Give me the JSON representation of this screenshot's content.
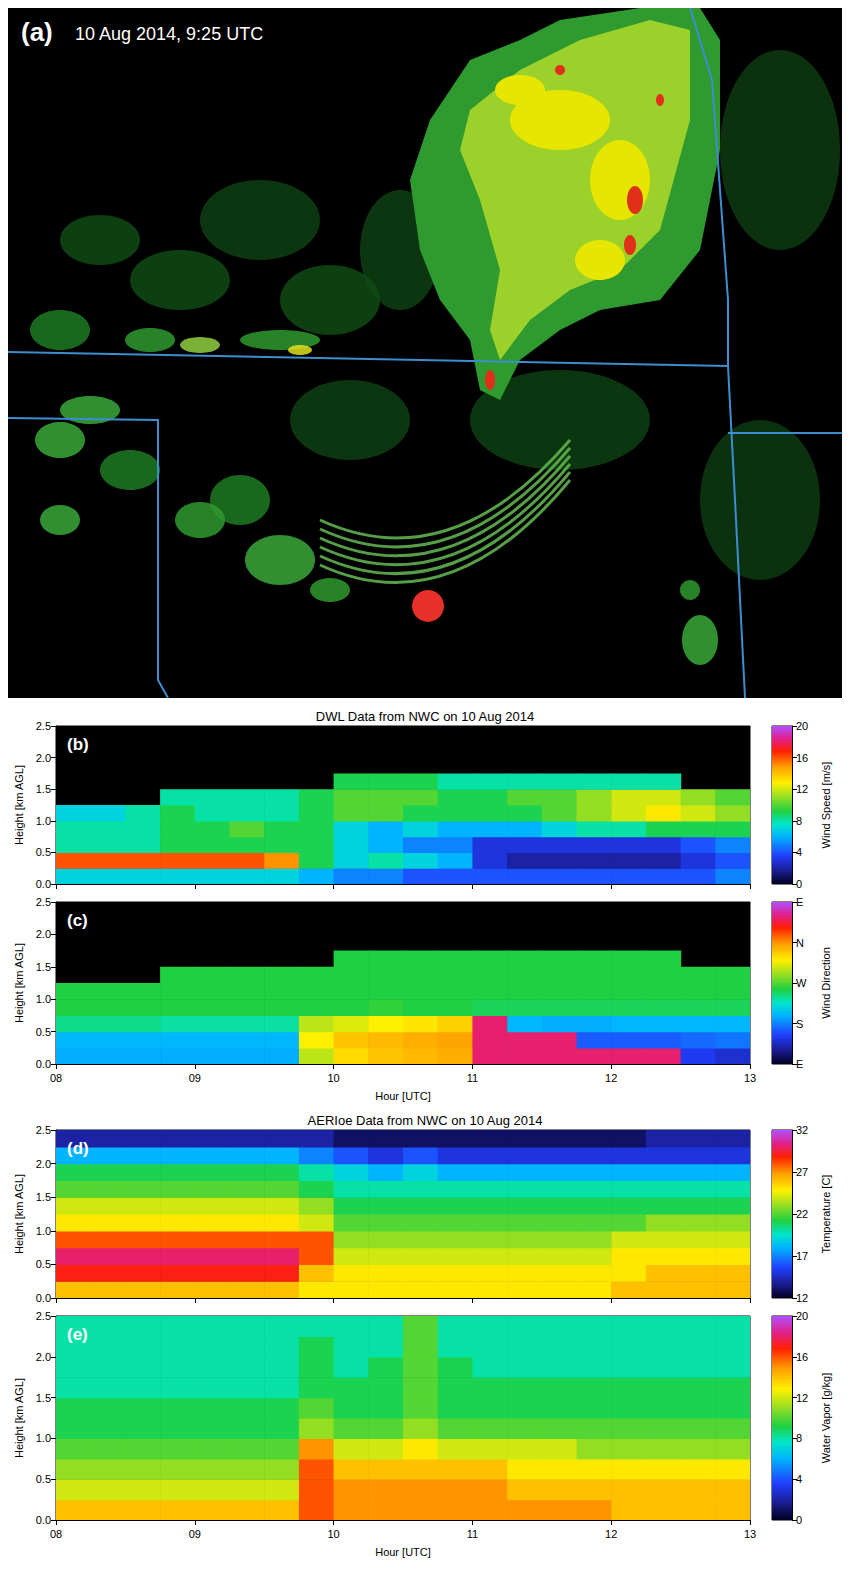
{
  "image_panel": {
    "panel": "(a)",
    "caption": "10 Aug 2014, 9:25 UTC"
  },
  "chart_data": [
    {
      "type": "heatmap",
      "panel": "(b)",
      "title": "DWL Data from NWC on 10 Aug 2014",
      "y_label": "Height [km AGL]",
      "tick_labels": "y",
      "x": [
        8.125,
        8.375,
        8.625,
        8.875,
        9.125,
        9.375,
        9.625,
        9.875,
        10.125,
        10.375,
        10.625,
        10.875,
        11.125,
        11.375,
        11.625,
        11.875,
        12.125,
        12.375,
        12.625,
        12.875
      ],
      "y": [
        0.125,
        0.375,
        0.625,
        0.875,
        1.125,
        1.375,
        1.625,
        1.875,
        2.125,
        2.375
      ],
      "cells": [
        [
          7,
          7,
          7,
          7,
          7,
          7,
          7,
          6,
          5,
          5,
          4,
          4,
          4,
          4,
          4,
          4,
          4,
          4,
          4,
          5
        ],
        [
          16,
          16,
          16,
          16,
          16,
          16,
          15,
          9,
          7,
          8,
          7,
          6,
          3,
          2,
          2,
          2,
          2,
          2,
          3,
          4
        ],
        [
          8,
          8,
          8,
          9,
          9,
          9,
          9,
          9,
          7,
          6,
          5,
          5,
          3,
          3,
          3,
          3,
          3,
          3,
          4,
          5
        ],
        [
          8,
          8,
          8,
          9,
          9,
          10,
          9,
          9,
          7,
          6,
          7,
          6,
          6,
          6,
          7,
          8,
          8,
          9,
          9,
          9
        ],
        [
          7,
          7,
          8,
          9,
          8,
          8,
          8,
          9,
          10,
          10,
          9,
          9,
          9,
          9,
          10,
          11,
          12,
          13,
          12,
          11
        ],
        [
          null,
          null,
          null,
          8,
          8,
          8,
          8,
          9,
          10,
          10,
          10,
          9,
          9,
          10,
          10,
          11,
          12,
          12,
          11,
          10
        ],
        [
          null,
          null,
          null,
          null,
          null,
          null,
          null,
          null,
          9,
          9,
          9,
          8,
          8,
          8,
          8,
          8,
          8,
          8,
          null,
          null
        ],
        [
          null,
          null,
          null,
          null,
          null,
          null,
          null,
          null,
          null,
          null,
          null,
          null,
          null,
          null,
          null,
          null,
          null,
          null,
          null,
          null
        ],
        [
          null,
          null,
          null,
          null,
          null,
          null,
          null,
          null,
          null,
          null,
          null,
          null,
          null,
          null,
          null,
          null,
          null,
          null,
          null,
          null
        ],
        [
          null,
          null,
          null,
          null,
          null,
          null,
          null,
          null,
          null,
          null,
          null,
          null,
          null,
          null,
          null,
          null,
          null,
          null,
          null,
          null
        ]
      ],
      "xlim": [
        8,
        13
      ],
      "xticks": [
        {
          "value": 8,
          "label": "08"
        },
        {
          "value": 9,
          "label": "09"
        },
        10,
        11,
        12,
        13
      ],
      "ylim": [
        0,
        2.5
      ],
      "yticks": [
        {
          "value": 0,
          "label": "0.0"
        },
        0.5,
        {
          "value": 1,
          "label": "1.0"
        },
        1.5,
        {
          "value": 2,
          "label": "2.0"
        },
        2.5
      ],
      "colorbar": {
        "label": "Wind Speed [m/s]",
        "range": [
          0,
          20
        ],
        "ticks": [
          0,
          4,
          8,
          12,
          16,
          20
        ]
      }
    },
    {
      "type": "heatmap",
      "panel": "(c)",
      "x_label": "Hour [UTC]",
      "y_label": "Height [km AGL]",
      "x": [
        8.125,
        8.375,
        8.625,
        8.875,
        9.125,
        9.375,
        9.625,
        9.875,
        10.125,
        10.375,
        10.625,
        10.875,
        11.125,
        11.375,
        11.625,
        11.875,
        12.125,
        12.375,
        12.625,
        12.875
      ],
      "y": [
        0.125,
        0.375,
        0.625,
        0.875,
        1.125,
        1.375,
        1.625,
        1.875,
        2.125,
        2.375
      ],
      "cells": [
        [
          195,
          195,
          195,
          195,
          195,
          195,
          195,
          300,
          330,
          340,
          345,
          350,
          415,
          415,
          415,
          415,
          415,
          415,
          150,
          140
        ],
        [
          200,
          200,
          200,
          200,
          200,
          200,
          200,
          320,
          340,
          345,
          350,
          355,
          415,
          415,
          415,
          165,
          165,
          165,
          170,
          175
        ],
        [
          240,
          240,
          240,
          235,
          235,
          235,
          235,
          300,
          310,
          320,
          325,
          335,
          415,
          200,
          195,
          195,
          200,
          200,
          200,
          200
        ],
        [
          255,
          255,
          255,
          255,
          255,
          255,
          255,
          255,
          255,
          260,
          255,
          255,
          250,
          250,
          250,
          250,
          250,
          250,
          250,
          250
        ],
        [
          255,
          255,
          255,
          255,
          255,
          255,
          255,
          255,
          255,
          255,
          255,
          255,
          255,
          255,
          255,
          255,
          255,
          255,
          255,
          255
        ],
        [
          null,
          null,
          null,
          255,
          255,
          255,
          255,
          255,
          255,
          255,
          255,
          255,
          255,
          255,
          255,
          255,
          255,
          255,
          255,
          255
        ],
        [
          null,
          null,
          null,
          null,
          null,
          null,
          null,
          null,
          255,
          255,
          255,
          255,
          255,
          255,
          255,
          255,
          255,
          255,
          null,
          null
        ],
        [
          null,
          null,
          null,
          null,
          null,
          null,
          null,
          null,
          null,
          null,
          null,
          null,
          null,
          null,
          null,
          null,
          null,
          null,
          null,
          null
        ],
        [
          null,
          null,
          null,
          null,
          null,
          null,
          null,
          null,
          null,
          null,
          null,
          null,
          null,
          null,
          null,
          null,
          null,
          null,
          null,
          null
        ],
        [
          null,
          null,
          null,
          null,
          null,
          null,
          null,
          null,
          null,
          null,
          null,
          null,
          null,
          null,
          null,
          null,
          null,
          null,
          null,
          null
        ]
      ],
      "xlim": [
        8,
        13
      ],
      "xticks": [
        {
          "value": 8,
          "label": "08"
        },
        {
          "value": 9,
          "label": "09"
        },
        10,
        11,
        12,
        13
      ],
      "ylim": [
        0,
        2.5
      ],
      "yticks": [
        {
          "value": 0,
          "label": "0.0"
        },
        0.5,
        {
          "value": 1,
          "label": "1.0"
        },
        1.5,
        {
          "value": 2,
          "label": "2.0"
        },
        2.5
      ],
      "colorbar": {
        "label": "Wind Direction",
        "range": [
          90,
          450
        ],
        "ticks": [
          {
            "value": 90,
            "label": "E"
          },
          {
            "value": 180,
            "label": "S"
          },
          {
            "value": 270,
            "label": "W"
          },
          {
            "value": 360,
            "label": "N"
          },
          {
            "value": 450,
            "label": "E"
          }
        ]
      }
    },
    {
      "type": "heatmap",
      "panel": "(d)",
      "title": "AERIoe Data from NWC on 10 Aug 2014",
      "y_label": "Height [km AGL]",
      "tick_labels": "y",
      "x": [
        8.125,
        8.375,
        8.625,
        8.875,
        9.125,
        9.375,
        9.625,
        9.875,
        10.125,
        10.375,
        10.625,
        10.875,
        11.125,
        11.375,
        11.625,
        11.875,
        12.125,
        12.375,
        12.625,
        12.875
      ],
      "y": [
        0.125,
        0.375,
        0.625,
        0.875,
        1.125,
        1.375,
        1.625,
        1.875,
        2.125,
        2.375
      ],
      "cells": [
        [
          26,
          26,
          26,
          26,
          26,
          26,
          26,
          25,
          25,
          25,
          25,
          25,
          25,
          25,
          25,
          25,
          26,
          26,
          26,
          26
        ],
        [
          29,
          29,
          29,
          29,
          29,
          29,
          29,
          26,
          25,
          25,
          25,
          25,
          25,
          25,
          25,
          25,
          25,
          26,
          26,
          26
        ],
        [
          30,
          30,
          30,
          30,
          30,
          30,
          30,
          28,
          24,
          24,
          24,
          24,
          24,
          24,
          24,
          24,
          25,
          25,
          25,
          25
        ],
        [
          28,
          28,
          28,
          28,
          28,
          28,
          28,
          28,
          23,
          23,
          23,
          23,
          23,
          23,
          23,
          23,
          24,
          24,
          24,
          24
        ],
        [
          25,
          25,
          25,
          25,
          25,
          25,
          25,
          24,
          22,
          22,
          22,
          22,
          22,
          22,
          22,
          22,
          22,
          23,
          23,
          23
        ],
        [
          24,
          24,
          24,
          24,
          24,
          24,
          24,
          23,
          21,
          21,
          21,
          21,
          21,
          21,
          21,
          21,
          21,
          21,
          21,
          21
        ],
        [
          22,
          22,
          22,
          22,
          22,
          22,
          22,
          21,
          20,
          20,
          20,
          20,
          20,
          20,
          20,
          20,
          20,
          20,
          20,
          20
        ],
        [
          21,
          21,
          21,
          21,
          21,
          21,
          21,
          20,
          19,
          18,
          19,
          18,
          18,
          18,
          18,
          18,
          18,
          18,
          18,
          18
        ],
        [
          18,
          18,
          18,
          18,
          18,
          18,
          18,
          17,
          16,
          15,
          16,
          15,
          15,
          15,
          15,
          15,
          15,
          15,
          15,
          15
        ],
        [
          14,
          14,
          14,
          14,
          14,
          14,
          14,
          14,
          13,
          13,
          13,
          13,
          13,
          13,
          13,
          13,
          13,
          14,
          14,
          14
        ]
      ],
      "xlim": [
        8,
        13
      ],
      "xticks": [
        {
          "value": 8,
          "label": "08"
        },
        {
          "value": 9,
          "label": "09"
        },
        10,
        11,
        12,
        13
      ],
      "ylim": [
        0,
        2.5
      ],
      "yticks": [
        {
          "value": 0,
          "label": "0.0"
        },
        0.5,
        {
          "value": 1,
          "label": "1.0"
        },
        1.5,
        {
          "value": 2,
          "label": "2.0"
        },
        2.5
      ],
      "colorbar": {
        "label": "Temperature [C]",
        "range": [
          12,
          32
        ],
        "ticks": [
          12,
          17,
          22,
          27,
          32
        ]
      }
    },
    {
      "type": "heatmap",
      "panel": "(e)",
      "x_label": "Hour [UTC]",
      "y_label": "Height [km AGL]",
      "x": [
        8.125,
        8.375,
        8.625,
        8.875,
        9.125,
        9.375,
        9.625,
        9.875,
        10.125,
        10.375,
        10.625,
        10.875,
        11.125,
        11.375,
        11.625,
        11.875,
        12.125,
        12.375,
        12.625,
        12.875
      ],
      "y": [
        0.125,
        0.375,
        0.625,
        0.875,
        1.125,
        1.375,
        1.625,
        1.875,
        2.125,
        2.375
      ],
      "cells": [
        [
          14,
          14,
          14,
          14,
          14,
          14,
          14,
          16,
          15,
          15,
          15,
          15,
          15,
          15,
          15,
          15,
          14,
          14,
          14,
          14
        ],
        [
          12,
          12,
          12,
          12,
          12,
          12,
          12,
          16,
          15,
          15,
          15,
          15,
          15,
          14,
          14,
          14,
          14,
          14,
          14,
          14
        ],
        [
          11,
          11,
          11,
          11,
          11,
          11,
          11,
          16,
          14,
          14,
          14,
          14,
          14,
          13,
          13,
          13,
          13,
          13,
          13,
          13
        ],
        [
          10,
          10,
          10,
          10,
          10,
          10,
          10,
          15,
          12,
          12,
          13,
          12,
          12,
          12,
          12,
          11,
          11,
          11,
          11,
          11
        ],
        [
          9,
          9,
          9,
          9,
          9,
          9,
          9,
          11,
          10,
          10,
          11,
          10,
          10,
          10,
          10,
          10,
          10,
          10,
          10,
          10
        ],
        [
          9,
          9,
          9,
          9,
          9,
          9,
          9,
          10,
          9,
          9,
          10,
          9,
          9,
          9,
          9,
          9,
          9,
          9,
          9,
          9
        ],
        [
          8,
          8,
          8,
          8,
          8,
          8,
          8,
          9,
          9,
          9,
          10,
          9,
          9,
          9,
          9,
          9,
          9,
          9,
          9,
          9
        ],
        [
          8,
          8,
          8,
          8,
          8,
          8,
          8,
          9,
          8,
          9,
          10,
          9,
          8,
          8,
          8,
          8,
          8,
          8,
          8,
          8
        ],
        [
          8,
          8,
          8,
          8,
          8,
          8,
          8,
          9,
          8,
          8,
          10,
          8,
          8,
          8,
          8,
          8,
          8,
          8,
          8,
          8
        ],
        [
          8,
          8,
          8,
          8,
          8,
          8,
          8,
          8,
          8,
          8,
          10,
          8,
          8,
          8,
          8,
          8,
          8,
          8,
          8,
          8
        ]
      ],
      "xlim": [
        8,
        13
      ],
      "xticks": [
        {
          "value": 8,
          "label": "08"
        },
        {
          "value": 9,
          "label": "09"
        },
        10,
        11,
        12,
        13
      ],
      "ylim": [
        0,
        2.5
      ],
      "yticks": [
        {
          "value": 0,
          "label": "0.0"
        },
        0.5,
        {
          "value": 1,
          "label": "1.0"
        },
        1.5,
        {
          "value": 2,
          "label": "2.0"
        },
        2.5
      ],
      "colorbar": {
        "label": "Water Vapor [g/kg]",
        "range": [
          0,
          20
        ],
        "ticks": [
          0,
          4,
          8,
          12,
          16,
          20
        ]
      }
    }
  ]
}
